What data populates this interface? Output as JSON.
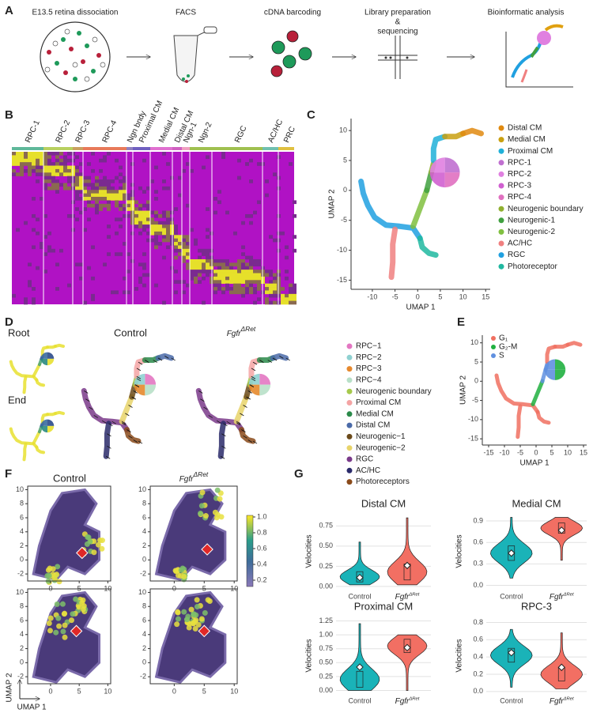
{
  "panel_labels": [
    "A",
    "B",
    "C",
    "D",
    "E",
    "F",
    "G"
  ],
  "workflow": {
    "steps": [
      "E13.5 retina dissociation",
      "FACS",
      "cDNA barcoding",
      "Library preparation",
      "&",
      "sequencing",
      "Bioinformatic analysis"
    ]
  },
  "genotype": {
    "control": "Control",
    "mutant": "Fgfr",
    "mutant_sup": "ΔRet"
  },
  "heatmap": {
    "clusters": [
      "RPC-1",
      "RPC-2",
      "RPC-3",
      "RPC-4",
      "Ngn bndy",
      "Proximal CM",
      "Medial CM",
      "Distal CM",
      "Ngn-1",
      "Ngn-2",
      "RGC",
      "AC/HC",
      "PRC"
    ],
    "colors": [
      "#5fb89a",
      "#b8d060",
      "#c9a060",
      "#e87a5a",
      "#9080c0",
      "#7060c0",
      "#e070d0",
      "#d060c0",
      "#f0a0c0",
      "#a0c050",
      "#a0c050",
      "#70c0b0",
      "#e0c040"
    ]
  },
  "umap_c": {
    "xlabel": "UMAP 1",
    "ylabel": "UMAP 2",
    "xlim": [
      -14,
      16
    ],
    "ylim": [
      -16,
      12
    ],
    "xticks": [
      -10,
      -5,
      0,
      5,
      10,
      15
    ],
    "yticks": [
      -15,
      -10,
      -5,
      0,
      5,
      10
    ],
    "legend": [
      {
        "name": "Distal CM",
        "color": "#e08a10"
      },
      {
        "name": "Medial CM",
        "color": "#c9a010"
      },
      {
        "name": "Proximal CM",
        "color": "#20b0d8"
      },
      {
        "name": "RPC-1",
        "color": "#c070d0"
      },
      {
        "name": "RPC-2",
        "color": "#e080e0"
      },
      {
        "name": "RPC-3",
        "color": "#d060d0"
      },
      {
        "name": "RPC-4",
        "color": "#e070c0"
      },
      {
        "name": "Neurogenic boundary",
        "color": "#90b030"
      },
      {
        "name": "Neurogenic-1",
        "color": "#40a040"
      },
      {
        "name": "Neurogenic-2",
        "color": "#80c040"
      },
      {
        "name": "AC/HC",
        "color": "#f08080"
      },
      {
        "name": "RGC",
        "color": "#20a0e0"
      },
      {
        "name": "Photoreceptor",
        "color": "#20b8a0"
      }
    ]
  },
  "velocity": {
    "root": "Root",
    "end": "End",
    "legend": [
      {
        "name": "RPC−1",
        "color": "#e377c2"
      },
      {
        "name": "RPC−2",
        "color": "#8fd1d1"
      },
      {
        "name": "RPC−3",
        "color": "#e6892e"
      },
      {
        "name": "RPC−4",
        "color": "#b8e0c8"
      },
      {
        "name": "Neurogenic boundary",
        "color": "#a6c94c"
      },
      {
        "name": "Proximal CM",
        "color": "#f4a4a4"
      },
      {
        "name": "Medial CM",
        "color": "#2a8a4a"
      },
      {
        "name": "Distal CM",
        "color": "#4a6aa8"
      },
      {
        "name": "Neurogenic−1",
        "color": "#6b4a1a"
      },
      {
        "name": "Neurogenic−2",
        "color": "#e8d46a"
      },
      {
        "name": "RGC",
        "color": "#7a3a8a"
      },
      {
        "name": "AC/HC",
        "color": "#2a2a6a"
      },
      {
        "name": "Photoreceptors",
        "color": "#8a4a1a"
      }
    ]
  },
  "umap_e": {
    "xlabel": "UMAP 1",
    "ylabel": "UMAP 2",
    "xlim": [
      -16,
      16
    ],
    "ylim": [
      -16,
      12
    ],
    "xticks": [
      -15,
      -10,
      -5,
      0,
      5,
      10,
      15
    ],
    "yticks": [
      -15,
      -10,
      -5,
      0,
      5,
      10
    ],
    "legend": [
      {
        "name": "G₁",
        "color": "#f07060"
      },
      {
        "name": "G₂-M",
        "color": "#20b040"
      },
      {
        "name": "S",
        "color": "#6090e0"
      }
    ]
  },
  "panel_f": {
    "xlabel": "UMAP 1",
    "ylabel": "UMAP 2",
    "xlim": [
      -4,
      10.5
    ],
    "ylim": [
      -3,
      10.5
    ],
    "xticks": [
      0,
      5,
      10
    ],
    "yticks": [
      -2,
      0,
      2,
      4,
      6,
      8,
      10
    ],
    "colorbar_ticks": [
      0.2,
      0.4,
      0.6,
      0.8,
      {
        "value": 1,
        "label": "1.0"
      }
    ],
    "colorbar_lim": [
      0.12,
      1.02
    ]
  },
  "panel_g": {
    "ylabel": "Velocities",
    "plots": [
      {
        "title": "Distal CM",
        "ylim": [
          -0.03,
          0.9
        ],
        "yticks": [
          {
            "value": 0,
            "label": "0.00"
          },
          0.25,
          {
            "value": 0.5,
            "label": "0.50"
          },
          0.75
        ],
        "means": [
          0.11,
          0.26
        ]
      },
      {
        "title": "Medial CM",
        "ylim": [
          -0.05,
          1.0
        ],
        "yticks": [
          {
            "value": 0,
            "label": "0.0"
          },
          0.3,
          0.6,
          0.9
        ],
        "means": [
          0.45,
          0.77
        ]
      },
      {
        "title": "Proximal CM",
        "ylim": [
          -0.05,
          1.3
        ],
        "yticks": [
          {
            "value": 0,
            "label": "0.00"
          },
          0.25,
          {
            "value": 0.5,
            "label": "0.50"
          },
          0.75,
          {
            "value": 1,
            "label": "1.00"
          },
          1.25
        ],
        "means": [
          0.42,
          0.77
        ]
      },
      {
        "title": "RPC-3",
        "ylim": [
          -0.02,
          0.85
        ],
        "yticks": [
          {
            "value": 0,
            "label": "0.0"
          },
          0.2,
          0.4,
          0.6,
          0.8
        ],
        "means": [
          0.45,
          0.28
        ]
      }
    ]
  }
}
